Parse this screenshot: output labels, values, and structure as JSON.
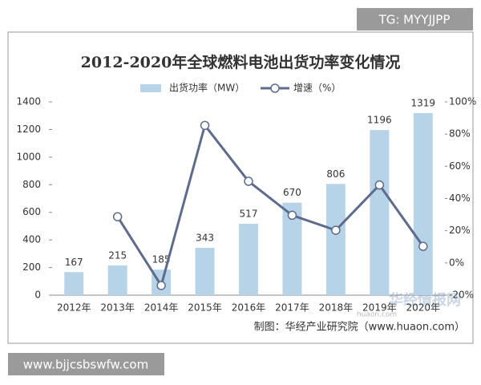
{
  "chart_data": {
    "type": "combo",
    "title": "2012-2020年全球燃料电池出货功率变化情况",
    "categories": [
      "2012年",
      "2013年",
      "2014年",
      "2015年",
      "2016年",
      "2017年",
      "2018年",
      "2019年",
      "2020年"
    ],
    "series": [
      {
        "name": "出货功率（MW）",
        "type": "bar",
        "color": "#b7d3e8",
        "values": [
          167,
          215,
          185,
          343,
          517,
          670,
          806,
          1196,
          1319
        ]
      },
      {
        "name": "增速（%）",
        "type": "line",
        "axis": "y2",
        "color": "#5f6b8c",
        "values": [
          null,
          28.7,
          -14,
          85.4,
          50.7,
          29.6,
          20.3,
          48.4,
          10.3
        ]
      }
    ],
    "ylim": [
      0,
      1400
    ],
    "yticks": [
      0,
      200,
      400,
      600,
      800,
      1000,
      1200,
      1400
    ],
    "y2lim": [
      -20,
      100
    ],
    "y2ticks": [
      {
        "value": -20,
        "label": "-20%"
      },
      {
        "value": 0,
        "label": "0%"
      },
      {
        "value": 20,
        "label": "20%"
      },
      {
        "value": 40,
        "label": "40%"
      },
      {
        "value": 60,
        "label": "60%"
      },
      {
        "value": 80,
        "label": "80%"
      },
      {
        "value": 100,
        "label": "100%"
      }
    ],
    "source": "制图：华经产业研究院（www.huaon.com）",
    "watermark": "华经情报网",
    "watermark_url": "huaon.com"
  },
  "overlay": {
    "tag": "TG: MYYJJPP",
    "site": "www.bjjcsbswfw.com"
  }
}
